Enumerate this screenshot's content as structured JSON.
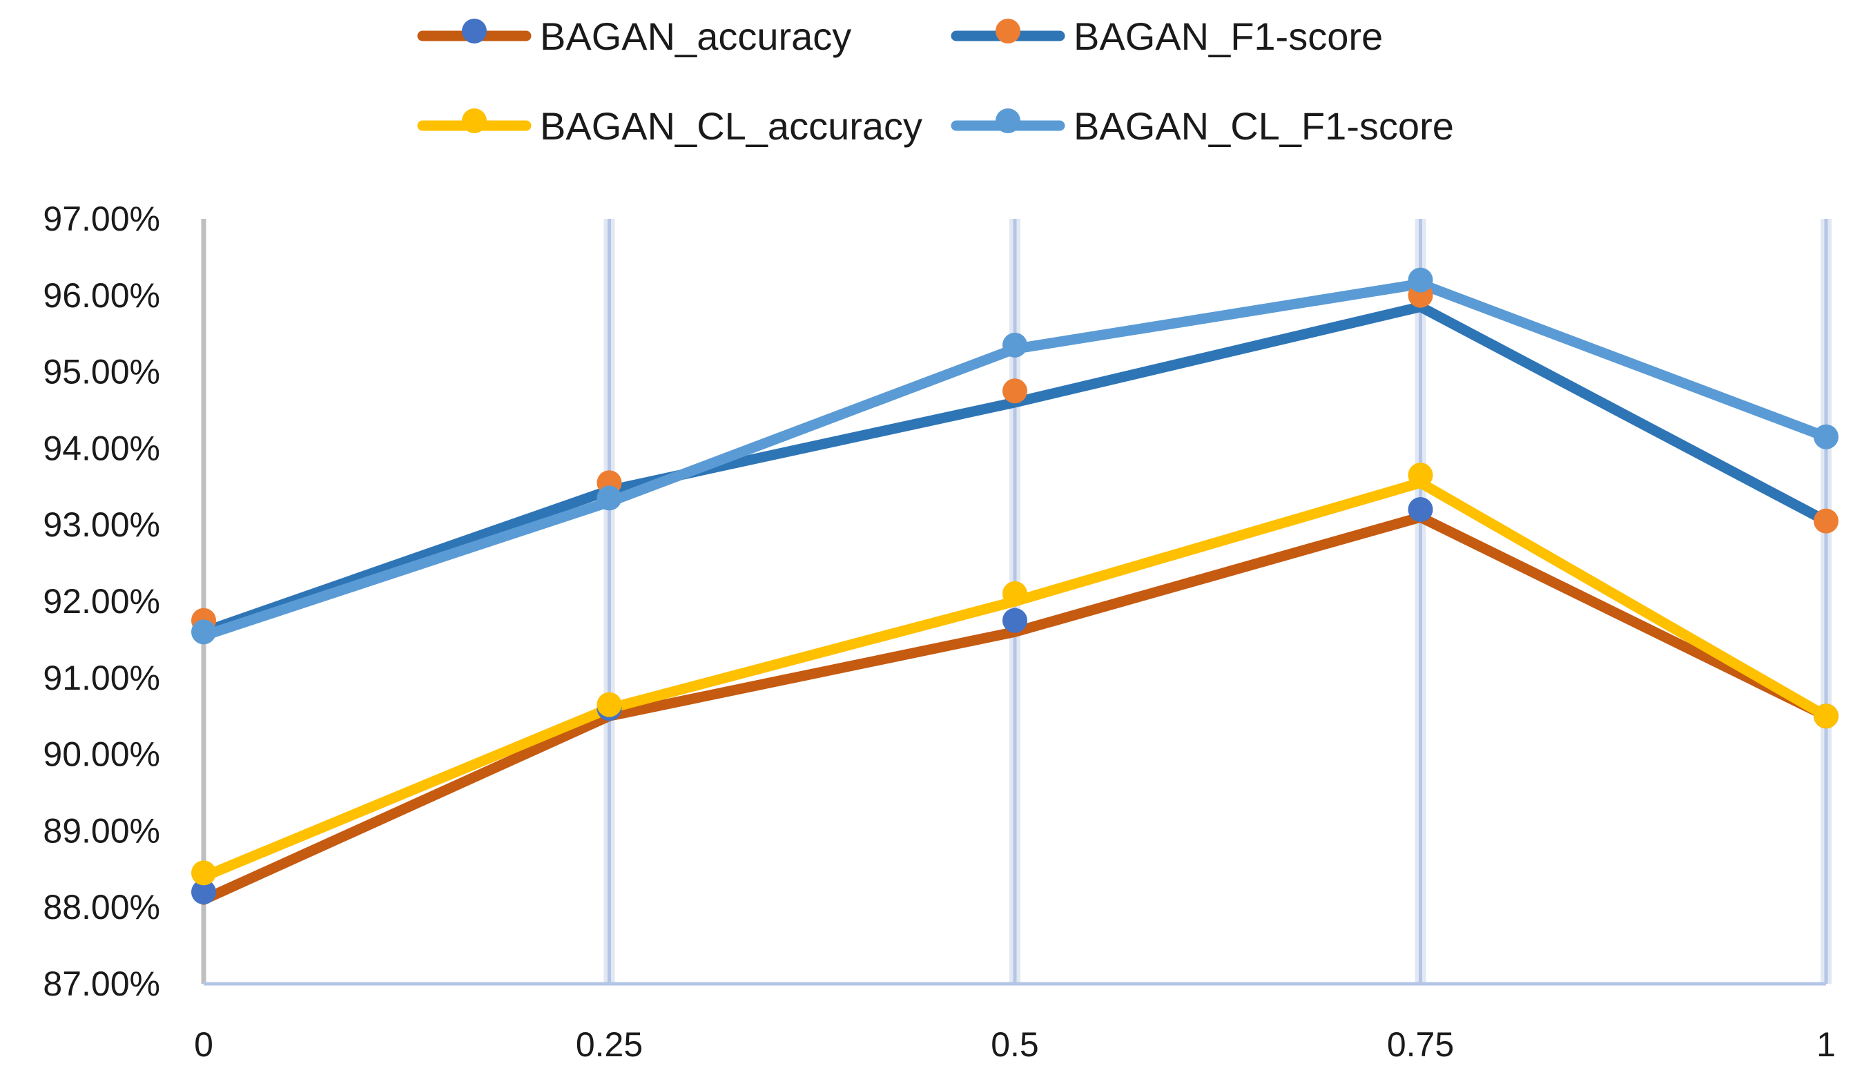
{
  "chart_data": {
    "type": "line",
    "x": [
      0,
      0.25,
      0.5,
      0.75,
      1
    ],
    "x_tick_labels": [
      "0",
      "0.25",
      "0.5",
      "0.75",
      "1"
    ],
    "y_tick_labels": [
      "87.00%",
      "88.00%",
      "89.00%",
      "90.00%",
      "91.00%",
      "92.00%",
      "93.00%",
      "94.00%",
      "95.00%",
      "96.00%",
      "97.00%"
    ],
    "ylim": [
      87,
      97
    ],
    "y_unit": "percent",
    "grid": "vertical",
    "legend_position": "top",
    "series": [
      {
        "name": "BAGAN_accuracy",
        "line_color": "#C55A11",
        "marker_color": "#4472C4",
        "line_values": [
          88.1,
          90.5,
          91.6,
          93.1,
          90.5
        ],
        "marker_values": [
          88.2,
          90.6,
          91.75,
          93.2,
          90.5
        ]
      },
      {
        "name": "BAGAN_F1-score",
        "line_color": "#2E75B6",
        "marker_color": "#ED7D31",
        "line_values": [
          91.6,
          93.45,
          94.6,
          95.85,
          93.05
        ],
        "marker_values": [
          91.75,
          93.55,
          94.75,
          96.0,
          93.05
        ]
      },
      {
        "name": "BAGAN_CL_accuracy",
        "line_color": "#FFC000",
        "marker_color": "#FFC000",
        "line_values": [
          88.4,
          90.6,
          92.0,
          93.55,
          90.5
        ],
        "marker_values": [
          88.45,
          90.65,
          92.1,
          93.65,
          90.5
        ]
      },
      {
        "name": "BAGAN_CL_F1-score",
        "line_color": "#5B9BD5",
        "marker_color": "#5B9BD5",
        "line_values": [
          91.55,
          93.3,
          95.3,
          96.15,
          94.15
        ],
        "marker_values": [
          91.6,
          93.35,
          95.35,
          96.2,
          94.15
        ]
      }
    ]
  }
}
